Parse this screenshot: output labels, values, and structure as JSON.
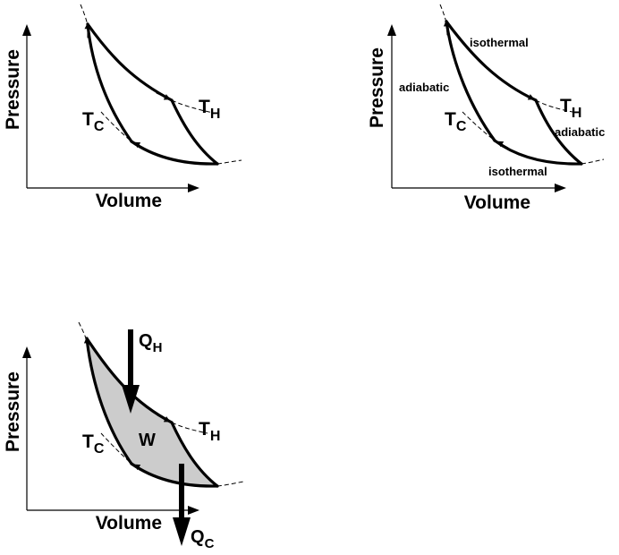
{
  "panels": [
    {
      "x_label": "Volume",
      "y_label": "Pressure",
      "hot_label": "T",
      "hot_sub": "H",
      "cold_label": "T",
      "cold_sub": "C"
    },
    {
      "x_label": "Volume",
      "y_label": "Pressure",
      "hot_label": "T",
      "hot_sub": "H",
      "cold_label": "T",
      "cold_sub": "C",
      "process_labels": {
        "top": "isothermal",
        "left": "adiabatic",
        "right": "adiabatic",
        "bottom": "isothermal"
      }
    },
    {
      "x_label": "Volume",
      "y_label": "Pressure",
      "hot_label": "T",
      "hot_sub": "H",
      "cold_label": "T",
      "cold_sub": "C",
      "work_label": "W",
      "heat_in_label": "Q",
      "heat_in_sub": "H",
      "heat_out_label": "Q",
      "heat_out_sub": "C"
    }
  ],
  "colors": {
    "line": "#000000",
    "fill": "#cccccc"
  }
}
